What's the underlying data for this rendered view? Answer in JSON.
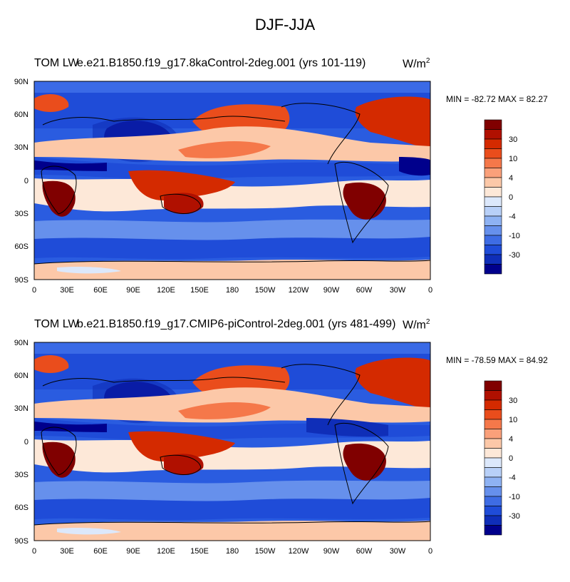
{
  "title": "DJF-JJA",
  "panels": [
    {
      "variable_label": "TOM LW",
      "case_label": "e.e21.B1850.f19_g17.8kaControl-2deg.001 (yrs 101-119)",
      "units_base": "W/m",
      "units_exp": "2",
      "stats": "MIN = -82.72 MAX =  82.27"
    },
    {
      "variable_label": "TOM LW",
      "case_label": "b.e21.B1850.f19_g17.CMIP6-piControl-2deg.001 (yrs 481-499)",
      "units_base": "W/m",
      "units_exp": "2",
      "stats": "MIN = -78.59 MAX =  84.92"
    }
  ],
  "map": {
    "lat_ticks": [
      "90N",
      "60N",
      "30N",
      "0",
      "30S",
      "60S",
      "90S"
    ],
    "lon_ticks": [
      "0",
      "30E",
      "60E",
      "90E",
      "120E",
      "150E",
      "180",
      "150W",
      "120W",
      "90W",
      "60W",
      "30W",
      "0"
    ]
  },
  "colorbar": {
    "levels_shown": [
      "30",
      "10",
      "4",
      "0",
      "-4",
      "-10",
      "-30"
    ],
    "colors": [
      "#800000",
      "#b01000",
      "#d42a00",
      "#ea4d1c",
      "#f5784a",
      "#faa07a",
      "#fcc8a8",
      "#fde8d8",
      "#dce8fb",
      "#b8d0f8",
      "#8eb2f3",
      "#6690ec",
      "#3e6ce4",
      "#1f4cd8",
      "#0f2eb8",
      "#00008c"
    ]
  }
}
